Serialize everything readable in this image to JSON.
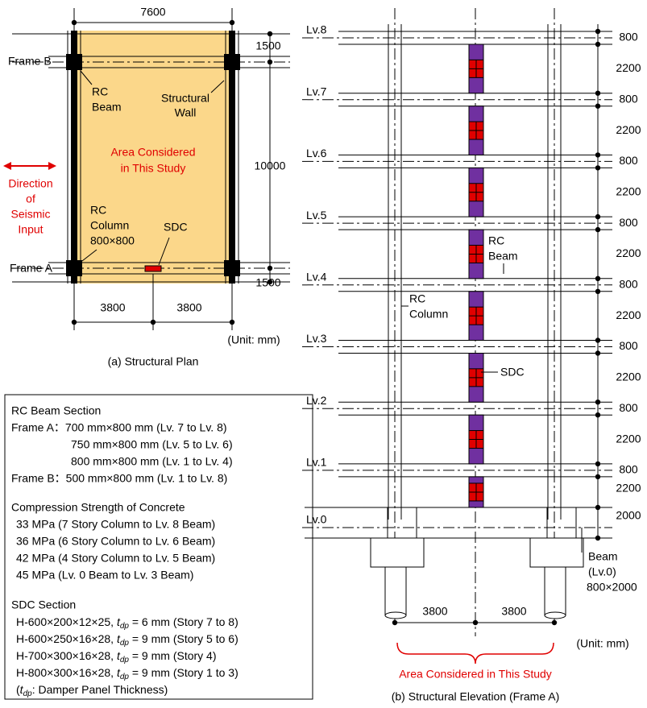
{
  "plan": {
    "caption": "(a) Structural Plan",
    "dim_top": "7600",
    "dim_right": [
      "1500",
      "10000",
      "1500"
    ],
    "dim_bottom": [
      "3800",
      "3800"
    ],
    "unit": "(Unit: mm)",
    "frame_b": "Frame B",
    "frame_a": "Frame A",
    "rc_beam": [
      "RC",
      "Beam"
    ],
    "structural_wall": [
      "Structural",
      "Wall"
    ],
    "area": [
      "Area Considered",
      "in This Study"
    ],
    "direction": [
      "Direction",
      "of",
      "Seismic",
      "Input"
    ],
    "rc_column": [
      "RC",
      "Column",
      "800×800"
    ],
    "sdc": "SDC"
  },
  "notes": {
    "beam_title": "RC Beam Section",
    "beam_lines": [
      "Frame A：700 mm×800 mm (Lv. 7 to Lv. 8)",
      "750 mm×800 mm (Lv. 5 to Lv. 6)",
      "800 mm×800 mm (Lv. 1 to Lv. 4)",
      "Frame B：500 mm×800 mm (Lv. 1 to Lv. 8)"
    ],
    "concrete_title": "Compression Strength of Concrete",
    "concrete_lines": [
      "33 MPa (7 Story Column to Lv. 8 Beam)",
      "36 MPa (6 Story Column to Lv. 6 Beam)",
      "42 MPa (4 Story Column to Lv. 5 Beam)",
      "45 MPa (Lv. 0 Beam to Lv. 3 Beam)"
    ],
    "sdc_title": "SDC Section",
    "sdc_lines": [
      {
        "pre": "H-600×200×12×25, ",
        "var": "t",
        "sub": "dp",
        "post": " = 6 mm (Story 7 to 8)"
      },
      {
        "pre": "H-600×250×16×28, ",
        "var": "t",
        "sub": "dp",
        "post": " = 9 mm (Story 5 to 6)"
      },
      {
        "pre": "H-700×300×16×28, ",
        "var": "t",
        "sub": "dp",
        "post": " = 9 mm (Story 4)"
      },
      {
        "pre": "H-800×300×16×28, ",
        "var": "t",
        "sub": "dp",
        "post": " = 9 mm (Story 1 to 3)"
      },
      {
        "pre": "(",
        "var": "t",
        "sub": "dp",
        "post": ": Damper Panel Thickness)"
      }
    ]
  },
  "elevation": {
    "caption": "(b) Structural Elevation (Frame A)",
    "levels": [
      "Lv.8",
      "Lv.7",
      "Lv.6",
      "Lv.5",
      "Lv.4",
      "Lv.3",
      "Lv.2",
      "Lv.1",
      "Lv.0"
    ],
    "dims": [
      "800",
      "2200",
      "800",
      "2200",
      "800",
      "2200",
      "800",
      "2200",
      "800",
      "2200",
      "800",
      "2200",
      "800",
      "2200",
      "800",
      "2200",
      "2000"
    ],
    "dim_bottom": [
      "3800",
      "3800"
    ],
    "unit": "(Unit: mm)",
    "area": "Area Considered in This Study",
    "rc_beam": [
      "RC",
      "Beam"
    ],
    "rc_column": [
      "RC",
      "Column"
    ],
    "sdc": "SDC",
    "base_beam": [
      "Beam",
      "(Lv.0)",
      "800×2000"
    ]
  }
}
